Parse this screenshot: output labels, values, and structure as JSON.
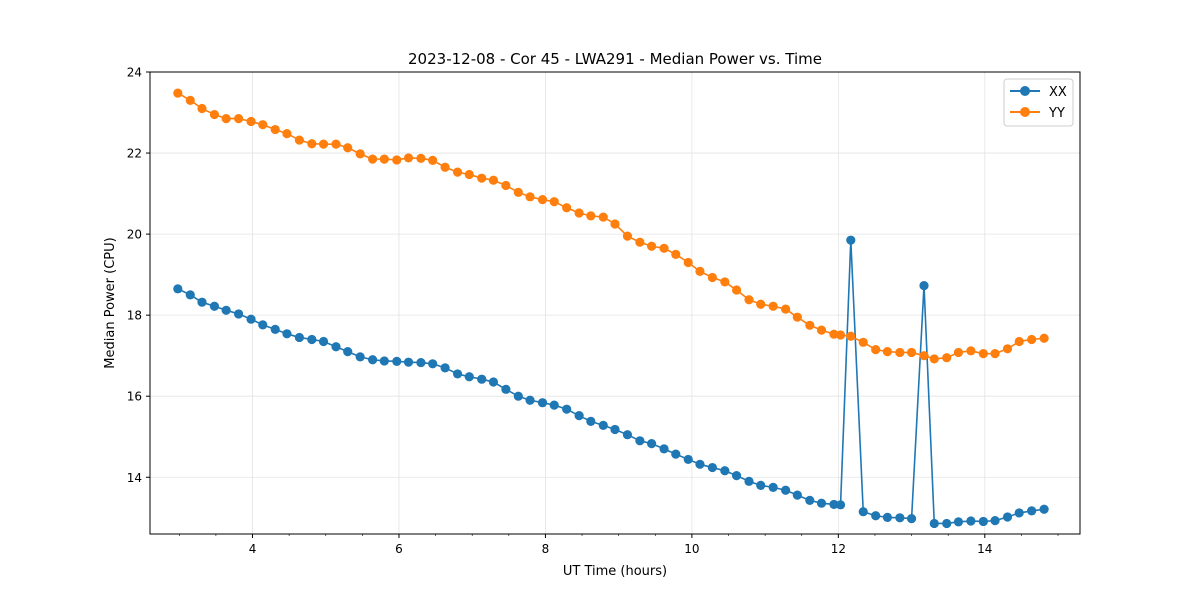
{
  "chart_data": {
    "type": "line",
    "title": "2023-12-08 - Cor 45 - LWA291 - Median Power vs. Time",
    "xlabel": "UT Time (hours)",
    "ylabel": "Median Power (CPU)",
    "xlim": [
      2.6,
      15.3
    ],
    "ylim": [
      12.6,
      24.0
    ],
    "xticks": [
      4,
      6,
      8,
      10,
      12,
      14
    ],
    "yticks": [
      14,
      16,
      18,
      20,
      22,
      24
    ],
    "grid": true,
    "legend_position": "top-right",
    "x": [
      2.98,
      3.15,
      3.31,
      3.48,
      3.64,
      3.81,
      3.98,
      4.14,
      4.31,
      4.47,
      4.64,
      4.81,
      4.97,
      5.14,
      5.3,
      5.47,
      5.64,
      5.8,
      5.97,
      6.13,
      6.3,
      6.46,
      6.63,
      6.8,
      6.96,
      7.13,
      7.29,
      7.46,
      7.63,
      7.79,
      7.96,
      8.12,
      8.29,
      8.46,
      8.62,
      8.79,
      8.95,
      9.12,
      9.29,
      9.45,
      9.62,
      9.78,
      9.95,
      10.11,
      10.28,
      10.45,
      10.61,
      10.78,
      10.94,
      11.11,
      11.28,
      11.44,
      11.61,
      11.77,
      11.94,
      12.03,
      12.17,
      12.34,
      12.51,
      12.67,
      12.84,
      13.0,
      13.17,
      13.31,
      13.48,
      13.64,
      13.81,
      13.98,
      14.14,
      14.31,
      14.47,
      14.64,
      14.81
    ],
    "series": [
      {
        "name": "XX",
        "color": "#1f77b4",
        "values": [
          18.65,
          18.5,
          18.32,
          18.22,
          18.12,
          18.03,
          17.9,
          17.76,
          17.65,
          17.54,
          17.45,
          17.4,
          17.35,
          17.22,
          17.1,
          16.97,
          16.9,
          16.87,
          16.86,
          16.84,
          16.83,
          16.8,
          16.7,
          16.55,
          16.48,
          16.42,
          16.35,
          16.17,
          16.0,
          15.9,
          15.84,
          15.78,
          15.68,
          15.52,
          15.38,
          15.28,
          15.18,
          15.05,
          14.9,
          14.83,
          14.7,
          14.57,
          14.44,
          14.32,
          14.24,
          14.16,
          14.04,
          13.9,
          13.8,
          13.75,
          13.68,
          13.56,
          13.43,
          13.36,
          13.33,
          13.32,
          19.85,
          13.15,
          13.05,
          13.01,
          13.0,
          12.98,
          18.73,
          12.86,
          12.86,
          12.9,
          12.92,
          12.91,
          12.93,
          13.02,
          13.12,
          13.17,
          13.21
        ]
      },
      {
        "name": "YY",
        "color": "#ff7f0e",
        "values": [
          23.48,
          23.3,
          23.1,
          22.95,
          22.85,
          22.85,
          22.78,
          22.7,
          22.58,
          22.48,
          22.32,
          22.23,
          22.22,
          22.22,
          22.13,
          21.98,
          21.85,
          21.85,
          21.83,
          21.88,
          21.87,
          21.82,
          21.65,
          21.53,
          21.47,
          21.38,
          21.33,
          21.2,
          21.03,
          20.92,
          20.85,
          20.8,
          20.65,
          20.52,
          20.45,
          20.42,
          20.25,
          19.95,
          19.8,
          19.7,
          19.65,
          19.5,
          19.3,
          19.08,
          18.93,
          18.82,
          18.62,
          18.38,
          18.27,
          18.22,
          18.15,
          17.95,
          17.75,
          17.63,
          17.53,
          17.51,
          17.48,
          17.33,
          17.15,
          17.1,
          17.08,
          17.08,
          17.0,
          16.92,
          16.95,
          17.08,
          17.12,
          17.05,
          17.05,
          17.17,
          17.35,
          17.4,
          17.43
        ]
      }
    ]
  }
}
